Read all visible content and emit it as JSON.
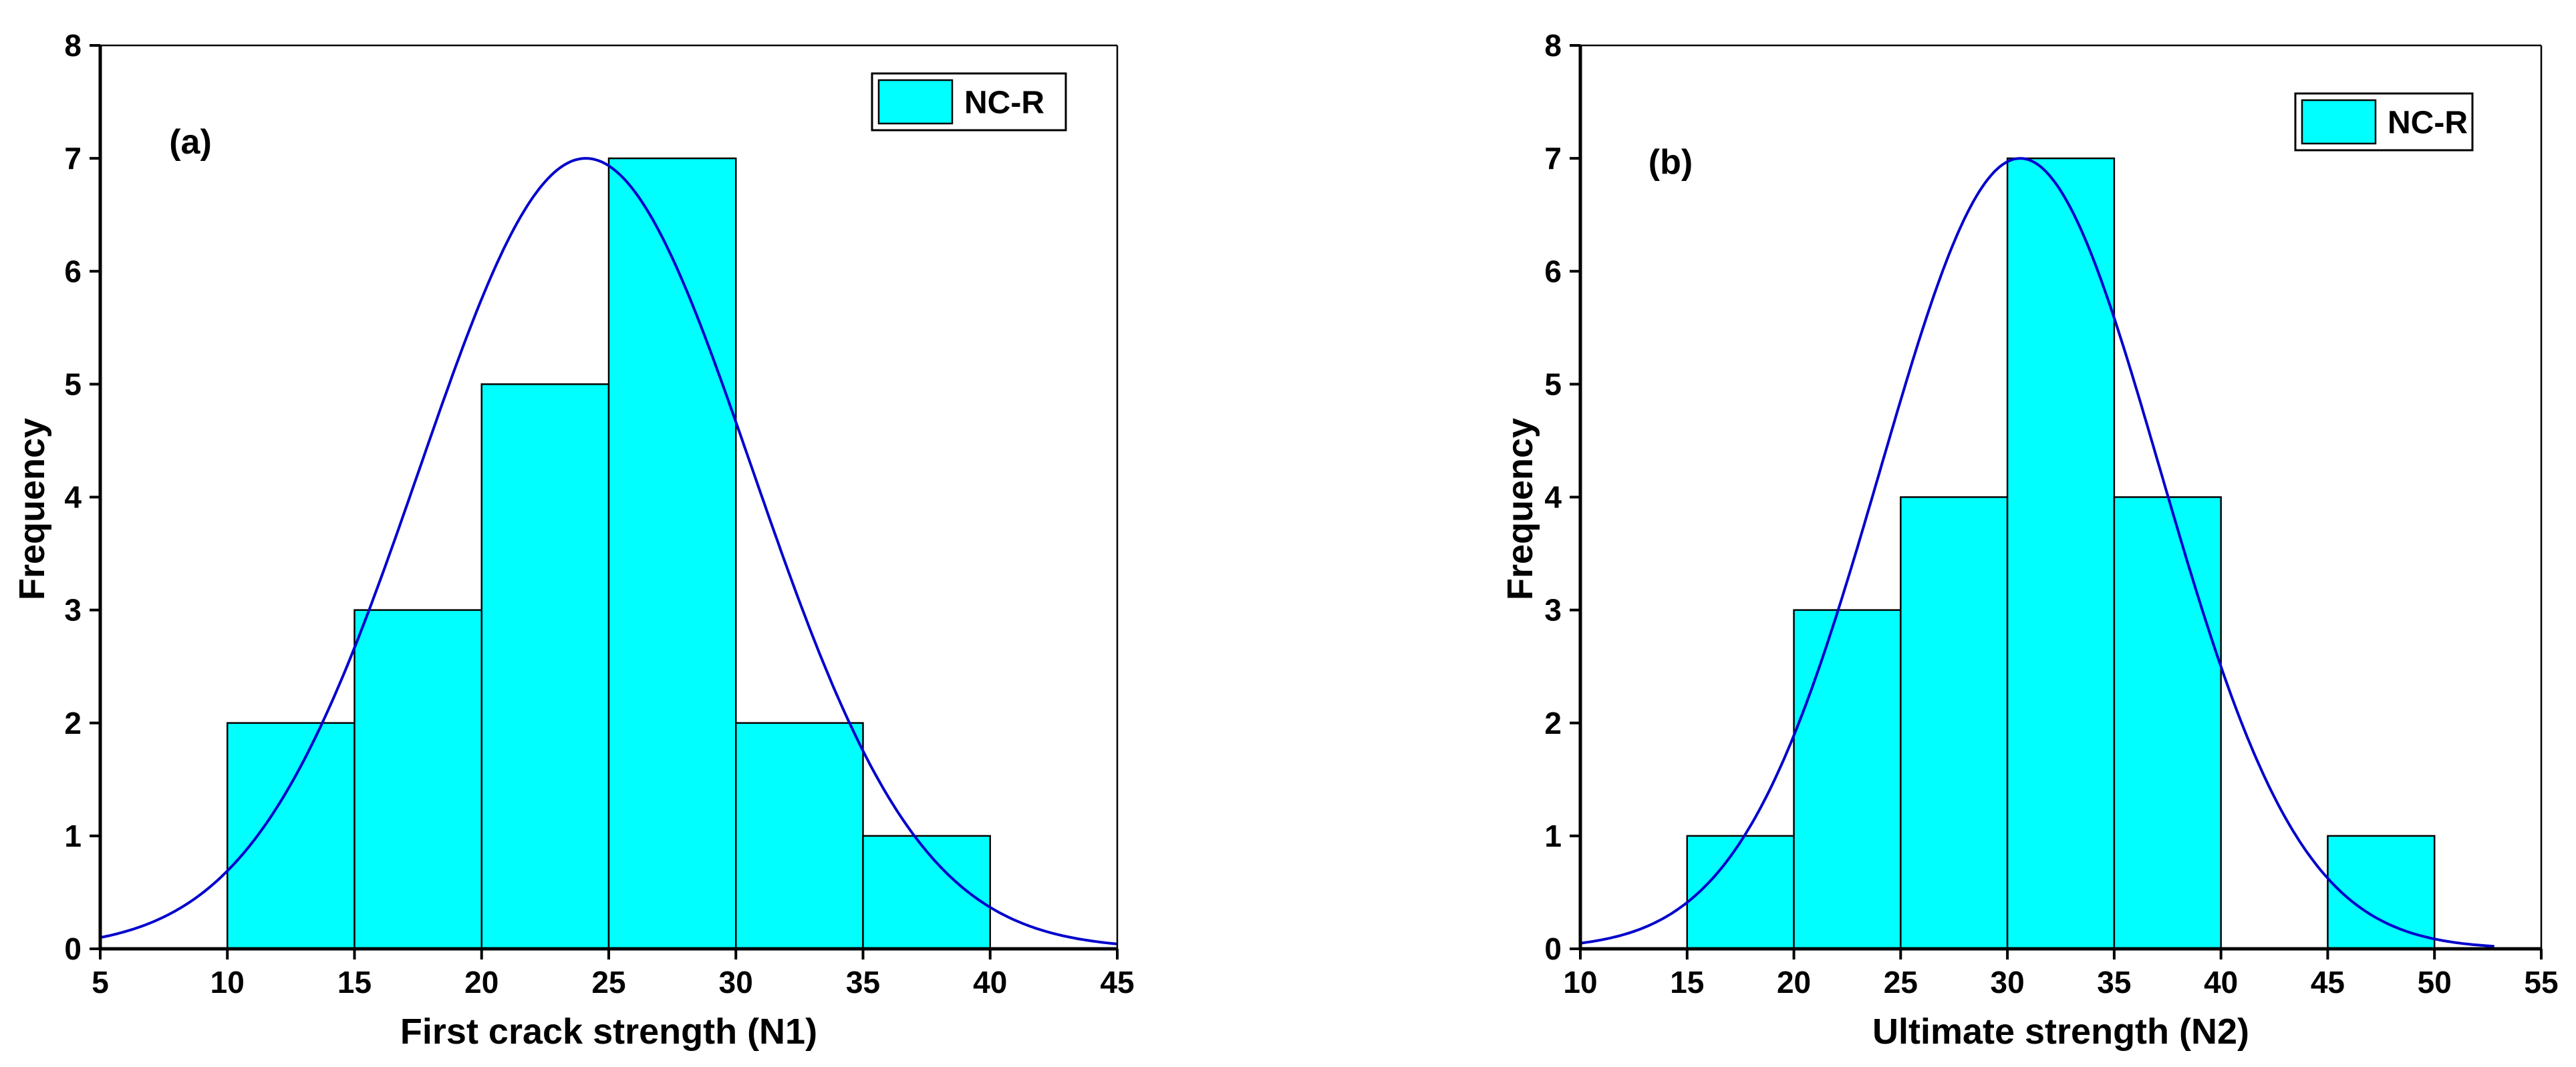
{
  "chart_data": [
    {
      "type": "bar",
      "subtype": "histogram",
      "panel_label": "(a)",
      "xlabel": "First crack strength (N1)",
      "ylabel": "Frequency",
      "xlim": [
        5,
        45
      ],
      "ylim": [
        0,
        8
      ],
      "xticks": [
        5,
        10,
        15,
        20,
        25,
        30,
        35,
        40,
        45
      ],
      "yticks": [
        0,
        1,
        2,
        3,
        4,
        5,
        6,
        7,
        8
      ],
      "bins": [
        {
          "from": 10,
          "to": 15,
          "count": 2
        },
        {
          "from": 15,
          "to": 20,
          "count": 3
        },
        {
          "from": 20,
          "to": 25,
          "count": 5
        },
        {
          "from": 25,
          "to": 30,
          "count": 7
        },
        {
          "from": 30,
          "to": 35,
          "count": 2
        },
        {
          "from": 35,
          "to": 40,
          "count": 1
        }
      ],
      "fit_curve": {
        "type": "normal",
        "mean": 24.1,
        "sd": 6.55,
        "peak": 7.0,
        "x_range": [
          5,
          45
        ]
      },
      "legend": {
        "label": "NC-R",
        "position": "top-right"
      },
      "colors": {
        "bar_fill": "#00ffff",
        "bar_stroke": "#000000",
        "curve": "#0000cc"
      }
    },
    {
      "type": "bar",
      "subtype": "histogram",
      "panel_label": "(b)",
      "xlabel": "Ultimate strength (N2)",
      "ylabel": "Frequency",
      "xlim": [
        10,
        55
      ],
      "ylim": [
        0,
        8
      ],
      "xticks": [
        10,
        15,
        20,
        25,
        30,
        35,
        40,
        45,
        50,
        55
      ],
      "yticks": [
        0,
        1,
        2,
        3,
        4,
        5,
        6,
        7,
        8
      ],
      "bins": [
        {
          "from": 15,
          "to": 20,
          "count": 1
        },
        {
          "from": 20,
          "to": 25,
          "count": 3
        },
        {
          "from": 25,
          "to": 30,
          "count": 4
        },
        {
          "from": 30,
          "to": 35,
          "count": 7
        },
        {
          "from": 35,
          "to": 40,
          "count": 4
        },
        {
          "from": 40,
          "to": 45,
          "count": 0
        },
        {
          "from": 45,
          "to": 50,
          "count": 1
        }
      ],
      "fit_curve": {
        "type": "normal",
        "mean": 30.6,
        "sd": 6.55,
        "peak": 7.0,
        "x_range": [
          10,
          52.8
        ]
      },
      "legend": {
        "label": "NC-R",
        "position": "top-right"
      },
      "colors": {
        "bar_fill": "#00ffff",
        "bar_stroke": "#000000",
        "curve": "#0000cc"
      }
    }
  ]
}
